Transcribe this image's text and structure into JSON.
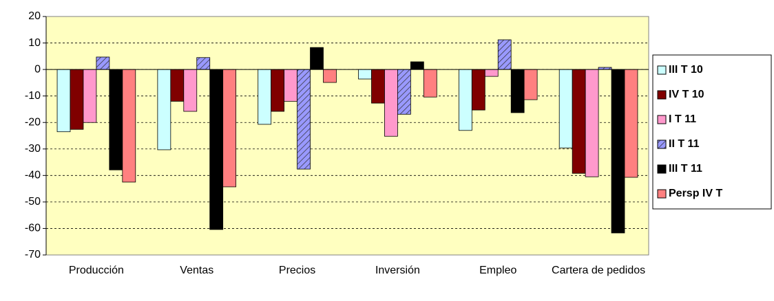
{
  "chart_data": {
    "type": "bar",
    "categories": [
      "Producción",
      "Ventas",
      "Precios",
      "Inversión",
      "Empleo",
      "Cartera de pedidos"
    ],
    "series": [
      {
        "name": "III T 10",
        "color": "#ccffff",
        "values": [
          -23.5,
          -30.3,
          -20.7,
          -3.6,
          -23,
          -29.6
        ]
      },
      {
        "name": "IV T 10",
        "color": "#800000",
        "values": [
          -22.6,
          -12,
          -15.8,
          -12.7,
          -15.3,
          -39.2
        ]
      },
      {
        "name": "I T 11",
        "color": "#ff99cc",
        "values": [
          -20,
          -15.8,
          -12,
          -25.2,
          -2.6,
          -40.5
        ]
      },
      {
        "name": "II T  11",
        "color": "#9999ff",
        "pattern": "diagonal",
        "values": [
          4.7,
          4.5,
          -37.6,
          -16.9,
          11.2,
          0.8
        ]
      },
      {
        "name": "III T 11",
        "color": "#000000",
        "values": [
          -37.9,
          -60.4,
          8.3,
          2.9,
          -16.3,
          -61.7
        ]
      },
      {
        "name": "Persp IV T",
        "color": "#ff8080",
        "values": [
          -42.5,
          -44.3,
          -4.9,
          -10.4,
          -11.4,
          -40.7
        ]
      }
    ],
    "ylim": [
      -70,
      20
    ],
    "yticks": [
      -70,
      -60,
      -50,
      -40,
      -30,
      -20,
      -10,
      0,
      10,
      20
    ],
    "grid": true,
    "legend": "right"
  }
}
